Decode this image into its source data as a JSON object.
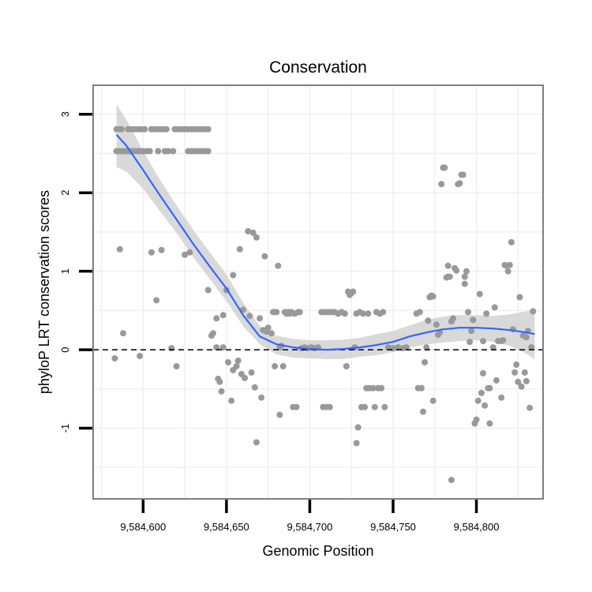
{
  "chart_data": {
    "type": "scatter",
    "title": "Conservation",
    "xlabel": "Genomic Position",
    "ylabel": "phyloP LRT conservation scores",
    "xlim": [
      9584570,
      9584840
    ],
    "ylim": [
      -1.9,
      3.37
    ],
    "x_ticks": [
      9584600,
      9584650,
      9584700,
      9584750,
      9584800
    ],
    "x_tick_labels": [
      "9,584,600",
      "9,584,650",
      "9,584,700",
      "9,584,750",
      "9,584,800"
    ],
    "y_ticks": [
      -1,
      0,
      1,
      2,
      3
    ],
    "y_tick_labels": [
      "-1",
      "0",
      "1",
      "2",
      "3"
    ],
    "grid": true,
    "reference_line": {
      "y": 0,
      "style": "dashed"
    },
    "colors": {
      "points": "#999999",
      "smooth": "#3366ff",
      "ribbon": "#cccccc",
      "frame": "#7f7f7f",
      "grid": "#f0f0f0"
    },
    "series": [
      {
        "name": "scores",
        "kind": "scatter",
        "points": [
          [
            9584584,
            2.81
          ],
          [
            9584586,
            2.81
          ],
          [
            9584587,
            2.81
          ],
          [
            9584591,
            2.81
          ],
          [
            9584593,
            2.81
          ],
          [
            9584595,
            2.81
          ],
          [
            9584597,
            2.81
          ],
          [
            9584599,
            2.81
          ],
          [
            9584601,
            2.81
          ],
          [
            9584605,
            2.81
          ],
          [
            9584607,
            2.81
          ],
          [
            9584609,
            2.81
          ],
          [
            9584611,
            2.81
          ],
          [
            9584613,
            2.81
          ],
          [
            9584614,
            2.81
          ],
          [
            9584619,
            2.81
          ],
          [
            9584621,
            2.81
          ],
          [
            9584623,
            2.81
          ],
          [
            9584625,
            2.81
          ],
          [
            9584627,
            2.81
          ],
          [
            9584629,
            2.81
          ],
          [
            9584631,
            2.81
          ],
          [
            9584633,
            2.81
          ],
          [
            9584635,
            2.81
          ],
          [
            9584637,
            2.81
          ],
          [
            9584639,
            2.81
          ],
          [
            9584584,
            2.53
          ],
          [
            9584586,
            2.53
          ],
          [
            9584588,
            2.53
          ],
          [
            9584590,
            2.53
          ],
          [
            9584592,
            2.53
          ],
          [
            9584594,
            2.53
          ],
          [
            9584596,
            2.53
          ],
          [
            9584598,
            2.53
          ],
          [
            9584600,
            2.53
          ],
          [
            9584602,
            2.53
          ],
          [
            9584604,
            2.53
          ],
          [
            9584609,
            2.53
          ],
          [
            9584613,
            2.53
          ],
          [
            9584615,
            2.53
          ],
          [
            9584618,
            2.53
          ],
          [
            9584627,
            2.53
          ],
          [
            9584629,
            2.53
          ],
          [
            9584631,
            2.53
          ],
          [
            9584633,
            2.53
          ],
          [
            9584635,
            2.53
          ],
          [
            9584637,
            2.53
          ],
          [
            9584639,
            2.53
          ],
          [
            9584586,
            1.28
          ],
          [
            9584588,
            0.21
          ],
          [
            9584583,
            -0.11
          ],
          [
            9584598,
            -0.08
          ],
          [
            9584605,
            1.24
          ],
          [
            9584608,
            0.63
          ],
          [
            9584611,
            1.27
          ],
          [
            9584617,
            0.02
          ],
          [
            9584620,
            -0.21
          ],
          [
            9584625,
            1.21
          ],
          [
            9584628,
            1.24
          ],
          [
            9584639,
            0.76
          ],
          [
            9584641,
            0.18
          ],
          [
            9584642,
            0.21
          ],
          [
            9584644,
            0.4
          ],
          [
            9584644,
            0.03
          ],
          [
            9584645,
            -0.37
          ],
          [
            9584646,
            -0.41
          ],
          [
            9584647,
            -0.53
          ],
          [
            9584648,
            0.44
          ],
          [
            9584648,
            0.03
          ],
          [
            9584650,
            0.76
          ],
          [
            9584651,
            -0.16
          ],
          [
            9584653,
            -0.65
          ],
          [
            9584654,
            0.95
          ],
          [
            9584654,
            -0.26
          ],
          [
            9584656,
            -0.21
          ],
          [
            9584657,
            -0.14
          ],
          [
            9584658,
            1.28
          ],
          [
            9584659,
            -0.31
          ],
          [
            9584660,
            0.51
          ],
          [
            9584661,
            -0.36
          ],
          [
            9584663,
            1.51
          ],
          [
            9584664,
            0.43
          ],
          [
            9584665,
            -0.29
          ],
          [
            9584666,
            1.49
          ],
          [
            9584667,
            -0.48
          ],
          [
            9584668,
            1.43
          ],
          [
            9584668,
            -1.18
          ],
          [
            9584670,
            0.4
          ],
          [
            9584671,
            -0.61
          ],
          [
            9584672,
            0.25
          ],
          [
            9584673,
            1.19
          ],
          [
            9584674,
            0.23
          ],
          [
            9584675,
            0.28
          ],
          [
            9584677,
            0.21
          ],
          [
            9584678,
            0.48
          ],
          [
            9584679,
            -0.21
          ],
          [
            9584680,
            0.48
          ],
          [
            9584681,
            1.07
          ],
          [
            9584682,
            0.03
          ],
          [
            9584682,
            -0.83
          ],
          [
            9584683,
            0.05
          ],
          [
            9584684,
            -0.21
          ],
          [
            9584685,
            0.48
          ],
          [
            9584686,
            0.46
          ],
          [
            9584687,
            0.48
          ],
          [
            9584688,
            0.46
          ],
          [
            9584689,
            0.48
          ],
          [
            9584690,
            -0.73
          ],
          [
            9584691,
            0.46
          ],
          [
            9584692,
            -0.73
          ],
          [
            9584693,
            0.48
          ],
          [
            9584694,
            0.48
          ],
          [
            9584695,
            0.02
          ],
          [
            9584697,
            0.03
          ],
          [
            9584699,
            0.02
          ],
          [
            9584701,
            0.03
          ],
          [
            9584703,
            0.02
          ],
          [
            9584705,
            0.03
          ],
          [
            9584707,
            0.48
          ],
          [
            9584708,
            -0.73
          ],
          [
            9584709,
            0.48
          ],
          [
            9584710,
            -0.73
          ],
          [
            9584711,
            0.48
          ],
          [
            9584712,
            -0.73
          ],
          [
            9584713,
            0.48
          ],
          [
            9584715,
            0.48
          ],
          [
            9584717,
            0.46
          ],
          [
            9584719,
            0.48
          ],
          [
            9584721,
            0.46
          ],
          [
            9584722,
            -0.21
          ],
          [
            9584723,
            0.74
          ],
          [
            9584724,
            0.7
          ],
          [
            9584725,
            0.72
          ],
          [
            9584726,
            0.74
          ],
          [
            9584727,
            0.03
          ],
          [
            9584728,
            0.46
          ],
          [
            9584728,
            -1.19
          ],
          [
            9584729,
            -0.99
          ],
          [
            9584730,
            0.48
          ],
          [
            9584731,
            -0.73
          ],
          [
            9584732,
            0.46
          ],
          [
            9584733,
            -0.73
          ],
          [
            9584734,
            -0.49
          ],
          [
            9584735,
            0.46
          ],
          [
            9584736,
            -0.49
          ],
          [
            9584738,
            -0.49
          ],
          [
            9584739,
            -0.73
          ],
          [
            9584740,
            0.48
          ],
          [
            9584741,
            -0.49
          ],
          [
            9584742,
            0.46
          ],
          [
            9584743,
            -0.49
          ],
          [
            9584744,
            0.48
          ],
          [
            9584745,
            -0.73
          ],
          [
            9584747,
            0.03
          ],
          [
            9584750,
            0.02
          ],
          [
            9584753,
            0.03
          ],
          [
            9584756,
            0.02
          ],
          [
            9584758,
            0.03
          ],
          [
            9584764,
            0.46
          ],
          [
            9584765,
            -0.49
          ],
          [
            9584766,
            0.48
          ],
          [
            9584767,
            -0.49
          ],
          [
            9584768,
            -0.79
          ],
          [
            9584769,
            -0.16
          ],
          [
            9584770,
            0.03
          ],
          [
            9584771,
            0.37
          ],
          [
            9584772,
            0.67
          ],
          [
            9584773,
            0.69
          ],
          [
            9584774,
            0.68
          ],
          [
            9584774,
            -0.65
          ],
          [
            9584776,
            0.32
          ],
          [
            9584777,
            0.19
          ],
          [
            9584778,
            0.22
          ],
          [
            9584779,
            2.11
          ],
          [
            9584780,
            2.32
          ],
          [
            9584781,
            2.32
          ],
          [
            9584782,
            0.92
          ],
          [
            9584783,
            0.93
          ],
          [
            9584783,
            1.07
          ],
          [
            9584784,
            0.93
          ],
          [
            9584785,
            0.36
          ],
          [
            9584785,
            -1.66
          ],
          [
            9584786,
            0.4
          ],
          [
            9584787,
            1.04
          ],
          [
            9584788,
            1.01
          ],
          [
            9584789,
            2.11
          ],
          [
            9584790,
            2.12
          ],
          [
            9584791,
            2.23
          ],
          [
            9584792,
            2.23
          ],
          [
            9584793,
            0.84
          ],
          [
            9584793,
            0.93
          ],
          [
            9584794,
            1.0
          ],
          [
            9584795,
            0.48
          ],
          [
            9584796,
            0.1
          ],
          [
            9584797,
            0.24
          ],
          [
            9584798,
            0.38
          ],
          [
            9584799,
            -0.94
          ],
          [
            9584800,
            -0.89
          ],
          [
            9584801,
            -0.65
          ],
          [
            9584802,
            0.71
          ],
          [
            9584803,
            -0.55
          ],
          [
            9584804,
            -0.3
          ],
          [
            9584804,
            0.11
          ],
          [
            9584805,
            -0.71
          ],
          [
            9584806,
            0.46
          ],
          [
            9584807,
            -0.49
          ],
          [
            9584808,
            -0.49
          ],
          [
            9584808,
            -0.94
          ],
          [
            9584810,
            0.03
          ],
          [
            9584811,
            0.54
          ],
          [
            9584812,
            -0.39
          ],
          [
            9584813,
            0.11
          ],
          [
            9584815,
            -0.61
          ],
          [
            9584815,
            0.11
          ],
          [
            9584816,
            0.12
          ],
          [
            9584817,
            1.08
          ],
          [
            9584818,
            1.07
          ],
          [
            9584819,
            1.0
          ],
          [
            9584820,
            1.08
          ],
          [
            9584821,
            1.37
          ],
          [
            9584822,
            0.26
          ],
          [
            9584823,
            -0.29
          ],
          [
            9584824,
            -0.19
          ],
          [
            9584825,
            -0.41
          ],
          [
            9584826,
            0.67
          ],
          [
            9584827,
            -0.47
          ],
          [
            9584828,
            0.18
          ],
          [
            9584829,
            -0.29
          ],
          [
            9584830,
            0.16
          ],
          [
            9584830,
            -0.4
          ],
          [
            9584831,
            0.24
          ],
          [
            9584832,
            -0.74
          ],
          [
            9584833,
            0.03
          ],
          [
            9584834,
            0.49
          ]
        ]
      },
      {
        "name": "smooth",
        "kind": "line",
        "x": [
          9584584,
          9584590,
          9584600,
          9584610,
          9584620,
          9584630,
          9584640,
          9584650,
          9584660,
          9584670,
          9584680,
          9584690,
          9584700,
          9584710,
          9584720,
          9584730,
          9584740,
          9584750,
          9584760,
          9584770,
          9584780,
          9584790,
          9584800,
          9584810,
          9584820,
          9584830,
          9584835
        ],
        "y": [
          2.74,
          2.6,
          2.29,
          1.97,
          1.66,
          1.35,
          1.06,
          0.78,
          0.44,
          0.17,
          0.07,
          0.03,
          0.01,
          0.0,
          0.01,
          0.03,
          0.06,
          0.1,
          0.17,
          0.22,
          0.26,
          0.28,
          0.28,
          0.27,
          0.25,
          0.22,
          0.2
        ],
        "lower": [
          2.33,
          2.27,
          2.05,
          1.77,
          1.49,
          1.18,
          0.9,
          0.62,
          0.3,
          0.07,
          -0.06,
          -0.1,
          -0.11,
          -0.12,
          -0.12,
          -0.09,
          -0.07,
          -0.03,
          0.03,
          0.07,
          0.09,
          0.11,
          0.12,
          0.1,
          0.05,
          -0.05,
          -0.12
        ],
        "upper": [
          3.13,
          2.93,
          2.53,
          2.17,
          1.84,
          1.53,
          1.24,
          0.96,
          0.6,
          0.3,
          0.18,
          0.14,
          0.12,
          0.12,
          0.13,
          0.15,
          0.2,
          0.24,
          0.31,
          0.38,
          0.42,
          0.44,
          0.44,
          0.43,
          0.45,
          0.49,
          0.52
        ]
      }
    ]
  }
}
